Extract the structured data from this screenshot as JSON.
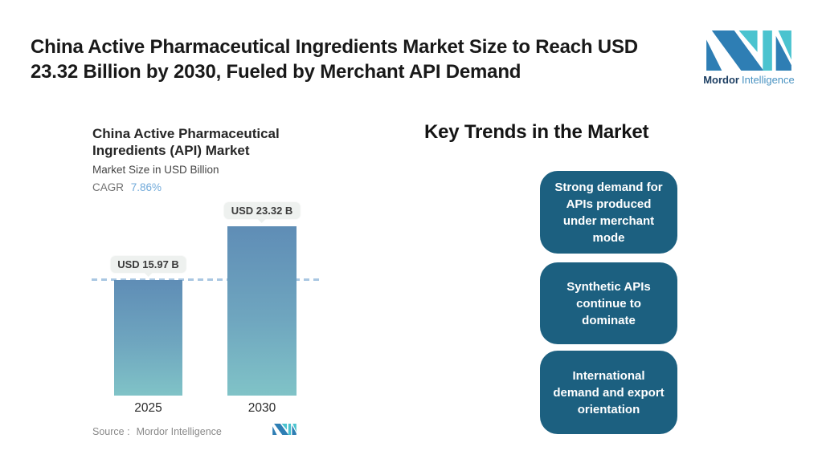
{
  "header": {
    "title_line1": "China Active Pharmaceutical Ingredients Market Size to Reach USD",
    "title_line2": "23.32 Billion by 2030, Fueled by Merchant API Demand"
  },
  "brand": {
    "word_primary": "Mordor",
    "word_secondary": "Intelligence",
    "color_dark_blue": "#2e7eb4",
    "color_teal": "#4ac3cf"
  },
  "chart": {
    "title_line1": "China Active Pharmaceutical",
    "title_line2": "Ingredients (API) Market",
    "subtitle": "Market Size in USD Billion",
    "cagr_label": "CAGR",
    "cagr_value": "7.86%",
    "source_label": "Source :",
    "source_value": "Mordor Intelligence"
  },
  "chart_data": {
    "type": "bar",
    "title": "China Active Pharmaceutical Ingredients (API) Market",
    "ylabel": "Market Size in USD Billion",
    "cagr": "7.86%",
    "categories": [
      "2025",
      "2030"
    ],
    "values": [
      15.97,
      23.32
    ],
    "value_labels": [
      "USD 15.97 B",
      "USD 23.32 B"
    ],
    "unit": "USD Billion",
    "reference_line": {
      "at_value": 15.97,
      "style": "dashed",
      "color": "#a9c7e2"
    },
    "bar_gradient_top": "#5f8db6",
    "bar_gradient_bottom": "#80c3c7",
    "grid": false,
    "legend": "none"
  },
  "trends": {
    "heading": "Key Trends in the Market",
    "box_color": "#1c6080",
    "items": [
      {
        "label": "Strong demand for APIs produced under merchant mode"
      },
      {
        "label": "Synthetic APIs continue to dominate"
      },
      {
        "label": "International demand and export orientation"
      }
    ]
  }
}
